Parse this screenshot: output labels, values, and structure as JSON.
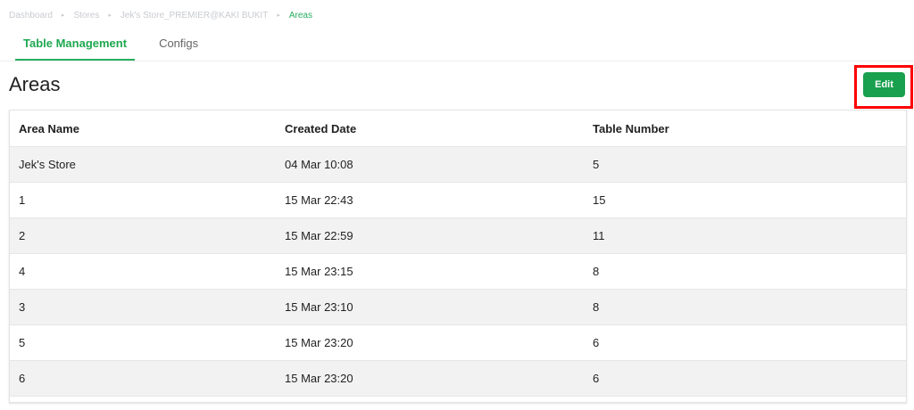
{
  "breadcrumb": [
    "Dashboard",
    "Stores",
    "Jek's Store_PREMIER@KAKI BUKIT",
    "Areas"
  ],
  "tabs": [
    {
      "label": "Table Management",
      "active": true
    },
    {
      "label": "Configs",
      "active": false
    }
  ],
  "page_title": "Areas",
  "edit_label": "Edit",
  "accent": "#18a04e",
  "table": {
    "headers": [
      "Area Name",
      "Created Date",
      "Table Number"
    ],
    "rows": [
      [
        "Jek's Store",
        "04 Mar 10:08",
        "5"
      ],
      [
        "1",
        "15 Mar 22:43",
        "15"
      ],
      [
        "2",
        "15 Mar 22:59",
        "11"
      ],
      [
        "4",
        "15 Mar 23:15",
        "8"
      ],
      [
        "3",
        "15 Mar 23:10",
        "8"
      ],
      [
        "5",
        "15 Mar 23:20",
        "6"
      ],
      [
        "6",
        "15 Mar 23:20",
        "6"
      ]
    ]
  }
}
